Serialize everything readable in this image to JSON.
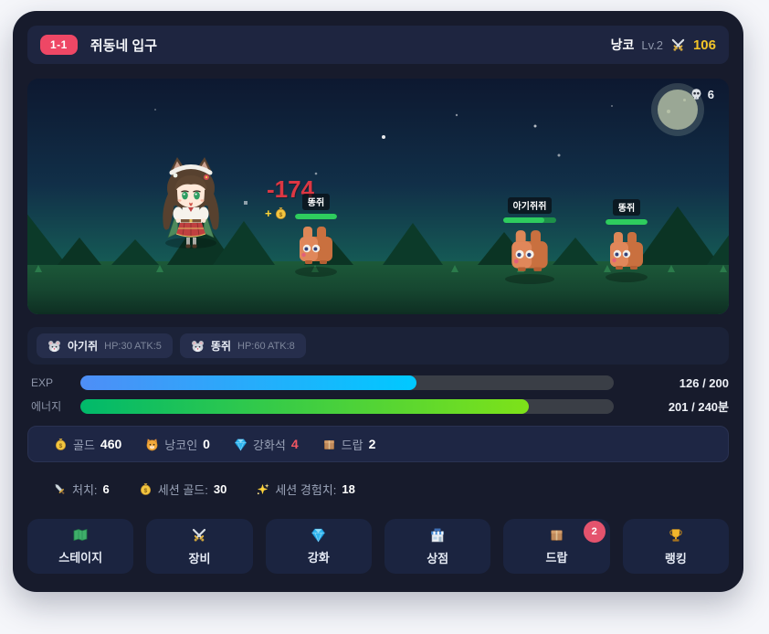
{
  "colors": {
    "page_bg": "#f5f6fa",
    "card_bg": "#171b2c",
    "panel_bg": "#1e2644",
    "badge_red": "#ee4765",
    "gold": "#f2c428",
    "damage_red": "#dd3743",
    "hp_green": "#2ecc5e",
    "exp_gradient": [
      "#4e8ef7",
      "#00c9ff"
    ],
    "energy_gradient": [
      "#00b96b",
      "#7ee219"
    ],
    "enhance_red": "#f25662",
    "drop_badge_pink": "#e4536d"
  },
  "header": {
    "stage_badge": "1-1",
    "stage_title": "쥐동네 입구",
    "player_name": "낭코",
    "player_level": "Lv.2",
    "attack_icon": "crossed-swords-icon",
    "attack_value": "106"
  },
  "scene": {
    "kill_counter": {
      "icon": "skull-icon",
      "value": "6"
    },
    "damage_popup": "-174",
    "gold_popup_plus": "+",
    "enemies": [
      {
        "name": "똥쥐",
        "hp_pct": 100
      },
      {
        "name": "아기쥐쥐",
        "hp_pct": 78
      },
      {
        "name": "똥쥐",
        "hp_pct": 100
      }
    ]
  },
  "enemy_info": [
    {
      "icon": "mouse-face-icon",
      "name": "아기쥐",
      "stats": "HP:30 ATK:5"
    },
    {
      "icon": "mouse-face-icon",
      "name": "똥쥐",
      "stats": "HP:60 ATK:8"
    }
  ],
  "bars": [
    {
      "label": "EXP",
      "value": "126 / 200",
      "pct": 63
    },
    {
      "label": "에너지",
      "value": "201 / 240분",
      "pct": 84
    }
  ],
  "resources": [
    {
      "icon": "money-bag-icon",
      "label": "골드",
      "value": "460"
    },
    {
      "icon": "cat-face-icon",
      "label": "낭코인",
      "value": "0"
    },
    {
      "icon": "gem-icon",
      "label": "강화석",
      "value": "4"
    },
    {
      "icon": "box-icon",
      "label": "드랍",
      "value": "2"
    }
  ],
  "session": [
    {
      "icon": "dagger-icon",
      "label": "처치:",
      "value": "6"
    },
    {
      "icon": "money-bag-icon",
      "label": "세션 골드:",
      "value": "30"
    },
    {
      "icon": "sparkles-icon",
      "label": "세션 경험치:",
      "value": "18"
    }
  ],
  "menu": [
    {
      "icon": "map-icon",
      "label": "스테이지"
    },
    {
      "icon": "crossed-swords-icon",
      "label": "장비"
    },
    {
      "icon": "gem-icon",
      "label": "강화"
    },
    {
      "icon": "store-icon",
      "label": "상점"
    },
    {
      "icon": "box-icon",
      "label": "드랍",
      "badge": "2"
    },
    {
      "icon": "trophy-icon",
      "label": "랭킹"
    }
  ]
}
